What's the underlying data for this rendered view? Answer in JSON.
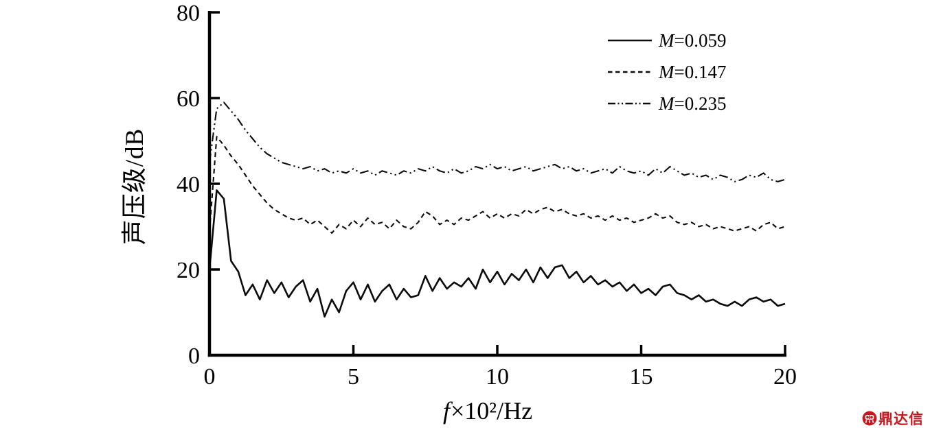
{
  "page": {
    "background": "#ffffff"
  },
  "chart_data": {
    "type": "line",
    "title": "",
    "xlabel": "f×10²/Hz",
    "xlabel_italic": "f",
    "xlabel_rest": "×10²/Hz",
    "ylabel": "声压级/dB",
    "xlim": [
      0,
      20
    ],
    "ylim": [
      0,
      80
    ],
    "xticks": [
      0,
      5,
      10,
      15,
      20
    ],
    "yticks": [
      0,
      20,
      40,
      60,
      80
    ],
    "grid": false,
    "legend_position": "upper-right",
    "axis_color": "#000000",
    "x_start": 0,
    "x_step": 0.25,
    "series": [
      {
        "name": "M=0.059",
        "style": "solid",
        "color": "#0b0b0b",
        "values": [
          20.0,
          38.5,
          36.5,
          22.0,
          19.5,
          14.0,
          16.5,
          13.0,
          17.5,
          14.5,
          17.0,
          13.5,
          16.0,
          17.5,
          12.5,
          15.5,
          9.0,
          13.0,
          10.0,
          15.0,
          17.0,
          13.0,
          16.5,
          12.5,
          15.0,
          16.5,
          13.0,
          15.5,
          13.5,
          14.0,
          18.5,
          15.0,
          18.0,
          15.5,
          17.0,
          16.0,
          18.0,
          15.5,
          20.0,
          17.0,
          19.5,
          16.5,
          19.0,
          17.5,
          20.0,
          17.0,
          20.5,
          18.0,
          20.5,
          21.0,
          18.0,
          19.5,
          17.0,
          18.5,
          16.5,
          17.5,
          16.0,
          17.0,
          15.0,
          16.5,
          14.5,
          15.5,
          14.0,
          16.0,
          16.5,
          14.5,
          14.0,
          13.0,
          14.0,
          12.5,
          13.0,
          12.0,
          11.5,
          12.5,
          11.5,
          13.0,
          13.5,
          12.5,
          13.0,
          11.5,
          12.0
        ]
      },
      {
        "name": "M=0.147",
        "style": "dashed",
        "color": "#0b0b0b",
        "values": [
          29.0,
          51.0,
          49.0,
          46.5,
          44.5,
          42.0,
          39.5,
          37.5,
          35.5,
          34.0,
          33.0,
          32.0,
          31.5,
          32.0,
          30.5,
          31.5,
          30.0,
          28.5,
          30.5,
          29.5,
          31.5,
          30.0,
          32.0,
          30.5,
          31.0,
          29.5,
          31.5,
          30.0,
          29.5,
          31.0,
          33.5,
          32.5,
          30.5,
          31.5,
          30.5,
          32.0,
          31.5,
          32.5,
          33.5,
          32.0,
          33.0,
          32.0,
          33.0,
          32.5,
          34.0,
          33.0,
          34.0,
          34.5,
          33.5,
          34.0,
          33.0,
          32.5,
          33.0,
          32.0,
          32.5,
          31.5,
          32.5,
          31.5,
          32.0,
          31.0,
          31.5,
          32.0,
          33.0,
          32.0,
          32.5,
          31.0,
          30.5,
          31.0,
          30.0,
          30.5,
          29.5,
          30.0,
          29.5,
          29.0,
          29.5,
          30.0,
          29.0,
          30.5,
          31.0,
          29.5,
          30.0
        ]
      },
      {
        "name": "M=0.235",
        "style": "dash-dot-dot",
        "color": "#0b0b0b",
        "values": [
          45.0,
          57.5,
          59.0,
          57.0,
          55.0,
          52.5,
          50.5,
          48.5,
          47.0,
          46.0,
          45.0,
          44.5,
          44.0,
          43.5,
          44.0,
          43.0,
          43.5,
          42.5,
          43.0,
          42.5,
          43.5,
          42.5,
          43.0,
          42.0,
          43.0,
          42.5,
          42.0,
          43.0,
          42.5,
          43.5,
          43.0,
          44.0,
          43.0,
          42.5,
          43.5,
          42.5,
          43.0,
          44.0,
          43.5,
          44.5,
          43.5,
          44.0,
          43.0,
          43.5,
          44.0,
          43.0,
          43.5,
          44.0,
          44.5,
          43.5,
          44.0,
          43.0,
          43.5,
          42.5,
          43.0,
          43.5,
          42.5,
          44.0,
          43.0,
          42.5,
          43.0,
          42.0,
          43.5,
          42.5,
          44.0,
          43.0,
          42.0,
          42.5,
          41.5,
          42.0,
          41.0,
          42.0,
          41.5,
          40.5,
          41.0,
          42.0,
          41.5,
          42.5,
          41.0,
          40.5,
          41.0
        ]
      }
    ]
  },
  "legend": {
    "items": [
      {
        "symbol": "M",
        "value": "=0.059"
      },
      {
        "symbol": "M",
        "value": "=0.147"
      },
      {
        "symbol": "M",
        "value": "=0.235"
      }
    ]
  },
  "watermark": {
    "text": "鼎达信",
    "color": "#c5181f"
  }
}
